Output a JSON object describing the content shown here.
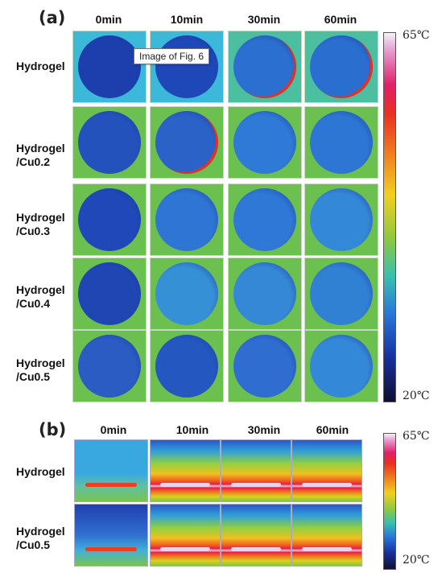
{
  "panel_a": {
    "label": "(a)",
    "columns": [
      "0min",
      "10min",
      "30min",
      "60min"
    ],
    "rows": [
      {
        "line1": "Hydrogel",
        "line2": ""
      },
      {
        "line1": "Hydrogel",
        "line2": "/Cu0.2"
      },
      {
        "line1": "Hydrogel",
        "line2": "/Cu0.3"
      },
      {
        "line1": "Hydrogel",
        "line2": "/Cu0.4"
      },
      {
        "line1": "Hydrogel",
        "line2": "/Cu0.5"
      }
    ],
    "colorbar": {
      "max": "65℃",
      "min": "20℃"
    }
  },
  "panel_b": {
    "label": "(b)",
    "columns": [
      "0min",
      "10min",
      "30min",
      "60min"
    ],
    "rows": [
      {
        "line1": "Hydrogel",
        "line2": ""
      },
      {
        "line1": "Hydrogel",
        "line2": "/Cu0.5"
      }
    ],
    "colorbar": {
      "max": "65℃",
      "min": "20℃"
    }
  },
  "tooltip": "Image of Fig. 6"
}
